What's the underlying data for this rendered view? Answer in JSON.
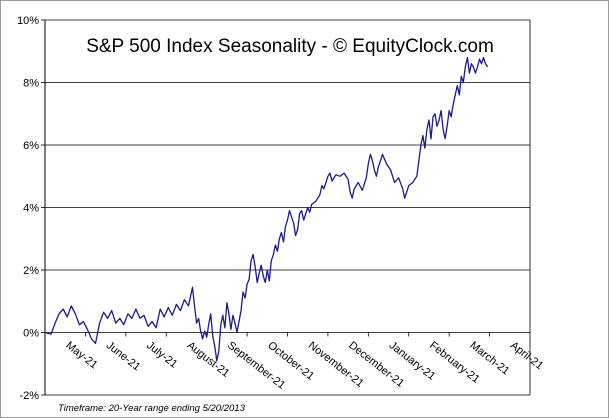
{
  "chart_data": {
    "type": "line",
    "title": "S&P 500 Index Seasonality - © EquityClock.com",
    "footnote": "Timeframe: 20-Year range ending 5/20/2013",
    "ylim": [
      -2,
      10
    ],
    "y_ticks": [
      "-2%",
      "0%",
      "2%",
      "4%",
      "6%",
      "8%",
      "10%"
    ],
    "y_tick_values": [
      -2,
      0,
      2,
      4,
      6,
      8,
      10
    ],
    "x_tick_labels": [
      "May-21",
      "June-21",
      "July-21",
      "August-21",
      "September-21",
      "October-21",
      "November-21",
      "December-21",
      "January-21",
      "February-21",
      "March-21",
      "April-21"
    ],
    "grid": "horizontal",
    "line_color": "#1a1a8c",
    "series": [
      {
        "x_range": [
          0,
          12
        ],
        "values": [
          [
            0.0,
            0.0
          ],
          [
            0.15,
            -0.05
          ],
          [
            0.25,
            0.3
          ],
          [
            0.35,
            0.6
          ],
          [
            0.45,
            0.75
          ],
          [
            0.55,
            0.5
          ],
          [
            0.65,
            0.85
          ],
          [
            0.75,
            0.6
          ],
          [
            0.85,
            0.25
          ],
          [
            0.95,
            0.35
          ],
          [
            1.05,
            0.1
          ],
          [
            1.15,
            -0.2
          ],
          [
            1.25,
            -0.35
          ],
          [
            1.35,
            0.3
          ],
          [
            1.45,
            0.65
          ],
          [
            1.55,
            0.45
          ],
          [
            1.65,
            0.7
          ],
          [
            1.75,
            0.3
          ],
          [
            1.85,
            0.45
          ],
          [
            1.95,
            0.25
          ],
          [
            2.05,
            0.6
          ],
          [
            2.15,
            0.45
          ],
          [
            2.25,
            0.75
          ],
          [
            2.35,
            0.45
          ],
          [
            2.45,
            0.55
          ],
          [
            2.55,
            0.2
          ],
          [
            2.65,
            0.35
          ],
          [
            2.75,
            0.15
          ],
          [
            2.85,
            0.75
          ],
          [
            2.95,
            0.5
          ],
          [
            3.05,
            0.8
          ],
          [
            3.15,
            0.55
          ],
          [
            3.25,
            0.9
          ],
          [
            3.35,
            0.7
          ],
          [
            3.45,
            1.05
          ],
          [
            3.55,
            0.85
          ],
          [
            3.65,
            1.45
          ],
          [
            3.7,
            0.85
          ],
          [
            3.75,
            0.3
          ],
          [
            3.8,
            0.45
          ],
          [
            3.85,
            0.05
          ],
          [
            3.9,
            -0.2
          ],
          [
            3.95,
            0.05
          ],
          [
            4.0,
            -0.15
          ],
          [
            4.05,
            0.25
          ],
          [
            4.1,
            0.6
          ],
          [
            4.15,
            -0.1
          ],
          [
            4.2,
            -0.45
          ],
          [
            4.25,
            -0.9
          ],
          [
            4.3,
            -0.6
          ],
          [
            4.35,
            0.25
          ],
          [
            4.4,
            0.55
          ],
          [
            4.45,
            0.15
          ],
          [
            4.5,
            0.95
          ],
          [
            4.55,
            0.6
          ],
          [
            4.6,
            0.1
          ],
          [
            4.65,
            0.55
          ],
          [
            4.7,
            0.3
          ],
          [
            4.75,
            0.0
          ],
          [
            4.8,
            0.35
          ],
          [
            4.85,
            0.7
          ],
          [
            4.9,
            1.3
          ],
          [
            4.95,
            1.1
          ],
          [
            5.0,
            1.55
          ],
          [
            5.05,
            1.7
          ],
          [
            5.1,
            2.3
          ],
          [
            5.15,
            2.5
          ],
          [
            5.2,
            2.1
          ],
          [
            5.25,
            1.6
          ],
          [
            5.3,
            1.9
          ],
          [
            5.35,
            2.15
          ],
          [
            5.4,
            1.8
          ],
          [
            5.45,
            1.6
          ],
          [
            5.5,
            2.0
          ],
          [
            5.55,
            1.65
          ],
          [
            5.6,
            2.3
          ],
          [
            5.65,
            2.5
          ],
          [
            5.7,
            2.8
          ],
          [
            5.75,
            2.6
          ],
          [
            5.8,
            3.0
          ],
          [
            5.85,
            3.2
          ],
          [
            5.9,
            2.9
          ],
          [
            5.95,
            3.4
          ],
          [
            6.0,
            3.6
          ],
          [
            6.05,
            3.9
          ],
          [
            6.1,
            3.7
          ],
          [
            6.15,
            3.5
          ],
          [
            6.2,
            3.1
          ],
          [
            6.25,
            3.3
          ],
          [
            6.3,
            3.8
          ],
          [
            6.35,
            3.9
          ],
          [
            6.4,
            3.6
          ],
          [
            6.45,
            3.8
          ],
          [
            6.5,
            4.0
          ],
          [
            6.55,
            3.85
          ],
          [
            6.6,
            4.1
          ],
          [
            6.7,
            4.2
          ],
          [
            6.8,
            4.4
          ],
          [
            6.85,
            4.7
          ],
          [
            6.9,
            4.6
          ],
          [
            7.0,
            5.0
          ],
          [
            7.05,
            5.1
          ],
          [
            7.1,
            4.85
          ],
          [
            7.2,
            5.05
          ],
          [
            7.3,
            5.0
          ],
          [
            7.4,
            5.1
          ],
          [
            7.5,
            4.9
          ],
          [
            7.55,
            4.5
          ],
          [
            7.6,
            4.3
          ],
          [
            7.65,
            4.6
          ],
          [
            7.75,
            4.8
          ],
          [
            7.85,
            4.55
          ],
          [
            7.95,
            4.95
          ],
          [
            8.0,
            5.4
          ],
          [
            8.05,
            5.7
          ],
          [
            8.1,
            5.5
          ],
          [
            8.15,
            5.2
          ],
          [
            8.2,
            5.0
          ],
          [
            8.25,
            5.3
          ],
          [
            8.35,
            5.7
          ],
          [
            8.45,
            5.4
          ],
          [
            8.55,
            5.2
          ],
          [
            8.6,
            5.0
          ],
          [
            8.65,
            4.8
          ],
          [
            8.75,
            4.95
          ],
          [
            8.85,
            4.6
          ],
          [
            8.9,
            4.3
          ],
          [
            8.95,
            4.5
          ],
          [
            9.0,
            4.7
          ],
          [
            9.1,
            4.8
          ],
          [
            9.2,
            5.0
          ],
          [
            9.25,
            5.5
          ],
          [
            9.3,
            6.0
          ],
          [
            9.35,
            6.3
          ],
          [
            9.4,
            5.9
          ],
          [
            9.45,
            6.5
          ],
          [
            9.5,
            6.8
          ],
          [
            9.55,
            6.2
          ],
          [
            9.6,
            6.9
          ],
          [
            9.65,
            7.0
          ],
          [
            9.7,
            6.6
          ],
          [
            9.75,
            6.8
          ],
          [
            9.8,
            7.1
          ],
          [
            9.85,
            6.5
          ],
          [
            9.9,
            6.2
          ],
          [
            9.95,
            6.6
          ],
          [
            10.0,
            7.1
          ],
          [
            10.05,
            6.9
          ],
          [
            10.1,
            7.3
          ],
          [
            10.15,
            7.6
          ],
          [
            10.2,
            7.9
          ],
          [
            10.25,
            7.6
          ],
          [
            10.3,
            8.2
          ],
          [
            10.35,
            8.0
          ],
          [
            10.4,
            8.5
          ],
          [
            10.45,
            8.8
          ],
          [
            10.5,
            8.3
          ],
          [
            10.55,
            8.6
          ],
          [
            10.6,
            8.5
          ],
          [
            10.65,
            8.3
          ],
          [
            10.7,
            8.5
          ],
          [
            10.75,
            8.75
          ],
          [
            10.8,
            8.6
          ],
          [
            10.85,
            8.8
          ],
          [
            10.9,
            8.6
          ],
          [
            10.95,
            8.5
          ]
        ]
      }
    ]
  }
}
